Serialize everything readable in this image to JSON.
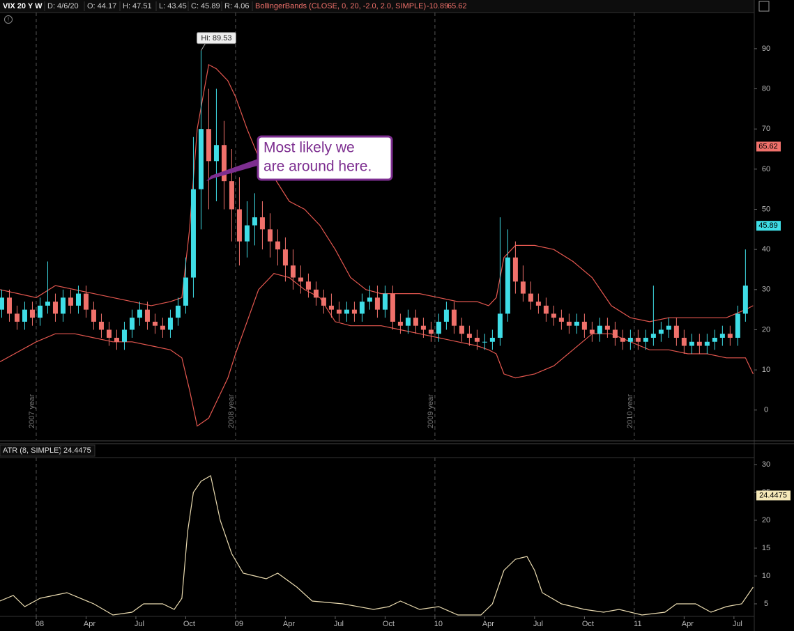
{
  "header": {
    "symbol": "VIX 20 Y W",
    "items": [
      "D: 4/6/20",
      "O: 44.17",
      "H: 47.51",
      "L: 43.45",
      "C: 45.89",
      "R: 4.06"
    ],
    "study": "BollingerBands (CLOSE, 0, 20, -2.0, 2.0, SIMPLE)",
    "study_values": [
      "-10.89",
      "65.62"
    ]
  },
  "annotation": {
    "lines": [
      "Most likely we",
      "are around here."
    ]
  },
  "chart_data": [
    {
      "type": "candlestick",
      "x": [
        -9,
        -7,
        -5,
        -3,
        -1,
        1,
        3,
        5,
        7,
        9,
        11,
        13,
        15,
        17,
        19,
        21,
        23,
        25,
        27,
        29,
        31,
        33,
        35,
        37,
        39,
        41,
        43,
        45,
        47,
        49,
        51,
        53,
        55,
        57,
        59,
        61,
        63,
        65,
        67,
        69,
        71,
        73,
        75,
        77,
        79,
        81,
        83,
        85,
        87,
        89,
        91,
        93,
        95,
        97,
        99,
        101,
        103,
        105,
        107,
        109,
        111,
        113,
        115,
        117,
        119,
        121,
        123,
        125,
        127,
        129,
        131,
        133,
        135,
        137,
        139,
        141,
        143,
        145,
        147,
        149,
        151,
        153,
        155,
        157,
        159,
        161,
        163,
        165,
        167,
        169,
        171,
        173,
        175,
        177,
        179,
        181,
        183,
        185
      ],
      "open": [
        25,
        28,
        24,
        22,
        25,
        23,
        26,
        27,
        24,
        28,
        26,
        29,
        25,
        22,
        20,
        18,
        17,
        20,
        23,
        25,
        22,
        21,
        20,
        23,
        26,
        33,
        55,
        70,
        62,
        66,
        57,
        50,
        42,
        46,
        48,
        45,
        42,
        40,
        36,
        33,
        32,
        30,
        28,
        26,
        25,
        24,
        25,
        24,
        27,
        28,
        25,
        29,
        22,
        21,
        23,
        21,
        20,
        19,
        22,
        25,
        21,
        19,
        18,
        17,
        17,
        18,
        24,
        38,
        32,
        29,
        27,
        26,
        24,
        23,
        22,
        21,
        22,
        20,
        19,
        21,
        20,
        18,
        17,
        18,
        17,
        18,
        19,
        20,
        21,
        18,
        16,
        17,
        16,
        17,
        18,
        19,
        18,
        24
      ],
      "high": [
        30,
        30,
        26,
        27,
        27,
        28,
        37,
        29,
        30,
        30,
        31,
        31,
        27,
        24,
        22,
        20,
        22,
        25,
        27,
        27,
        24,
        23,
        25,
        28,
        38,
        68,
        89.53,
        80,
        80,
        72,
        65,
        58,
        52,
        54,
        52,
        49,
        45,
        43,
        40,
        36,
        34,
        32,
        30,
        29,
        27,
        27,
        27,
        29,
        31,
        31,
        31,
        31,
        24,
        25,
        25,
        23,
        22,
        24,
        27,
        27,
        23,
        21,
        20,
        19,
        20,
        48,
        45,
        42,
        36,
        32,
        29,
        28,
        26,
        25,
        24,
        24,
        24,
        22,
        23,
        23,
        22,
        20,
        20,
        20,
        20,
        31,
        22,
        23,
        23,
        20,
        19,
        19,
        19,
        20,
        21,
        21,
        26,
        40
      ],
      "low": [
        23,
        22,
        20,
        20,
        21,
        21,
        24,
        22,
        22,
        24,
        24,
        23,
        20,
        18,
        16,
        15,
        15,
        18,
        21,
        20,
        19,
        18,
        18,
        21,
        24,
        28,
        45,
        50,
        52,
        50,
        42,
        36,
        38,
        41,
        40,
        38,
        36,
        32,
        30,
        29,
        28,
        26,
        24,
        23,
        22,
        22,
        22,
        22,
        25,
        23,
        23,
        20,
        19,
        19,
        19,
        18,
        17,
        17,
        20,
        19,
        17,
        16,
        15,
        15,
        15,
        16,
        22,
        29,
        27,
        25,
        24,
        22,
        21,
        20,
        19,
        19,
        18,
        17,
        17,
        18,
        16,
        15,
        15,
        15,
        15,
        16,
        17,
        18,
        16,
        14,
        14,
        14,
        14,
        15,
        16,
        16,
        16,
        22
      ],
      "close": [
        28,
        24,
        22,
        25,
        23,
        26,
        27,
        24,
        28,
        26,
        29,
        25,
        22,
        20,
        18,
        17,
        20,
        23,
        25,
        22,
        21,
        20,
        23,
        26,
        33,
        55,
        70,
        62,
        66,
        57,
        50,
        42,
        46,
        48,
        45,
        42,
        40,
        36,
        33,
        32,
        30,
        28,
        26,
        25,
        24,
        25,
        24,
        27,
        28,
        25,
        29,
        22,
        21,
        23,
        21,
        20,
        19,
        22,
        25,
        21,
        19,
        18,
        17,
        17,
        18,
        24,
        38,
        32,
        29,
        27,
        26,
        24,
        23,
        22,
        21,
        22,
        20,
        19,
        21,
        20,
        18,
        17,
        18,
        17,
        18,
        19,
        20,
        21,
        18,
        16,
        17,
        16,
        17,
        18,
        19,
        18,
        24,
        31
      ],
      "up_color": "#3fdde6",
      "down_color": "#f0716b",
      "high_label": "Hi: 89.53",
      "bands": {
        "color": "#e4574f",
        "x": [
          -9.5,
          0,
          5,
          10,
          15,
          20,
          25,
          30,
          35,
          38,
          40,
          42,
          45,
          47,
          50,
          52,
          55,
          58,
          62,
          66,
          70,
          74,
          78,
          82,
          86,
          90,
          95,
          100,
          105,
          110,
          115,
          118,
          120,
          122,
          125,
          130,
          135,
          140,
          145,
          150,
          155,
          160,
          165,
          170,
          175,
          180,
          185,
          187
        ],
        "upper": [
          30,
          28,
          31,
          30,
          29,
          28,
          27,
          26,
          27,
          28,
          45,
          70,
          86,
          85,
          82,
          78,
          70,
          63,
          58,
          52,
          50,
          46,
          40,
          33,
          30,
          29,
          29,
          29,
          28,
          27,
          27,
          26,
          28,
          38,
          41,
          41,
          40,
          37,
          33,
          26,
          23,
          22,
          23,
          23,
          23,
          23,
          25,
          26
        ],
        "lower": [
          12,
          17,
          19,
          19,
          18,
          17,
          17,
          16,
          15,
          13,
          5,
          -4,
          -2,
          2,
          8,
          14,
          22,
          30,
          34,
          33,
          30,
          28,
          22,
          21,
          21,
          21,
          20,
          19,
          18,
          17,
          16,
          15,
          14,
          9,
          8,
          9,
          11,
          15,
          19,
          19,
          17,
          15,
          15,
          14,
          14,
          13,
          13,
          9
        ]
      },
      "price_markers": [
        {
          "value": 65.62,
          "color": "#f0716b"
        },
        {
          "value": 45.89,
          "color": "#3fdde6"
        }
      ],
      "xlim": [
        -9.45,
        187.3
      ],
      "ylim": [
        -7.5,
        99
      ],
      "yticks": [
        0,
        10,
        20,
        30,
        40,
        50,
        60,
        70,
        80,
        90
      ],
      "xticks": [
        {
          "value": 0,
          "label": "2007 year"
        },
        {
          "value": 52,
          "label": "2008 year"
        },
        {
          "value": 104,
          "label": "2009 year"
        },
        {
          "value": 156,
          "label": "2010 year"
        }
      ]
    },
    {
      "type": "line",
      "title": "ATR (8, SIMPLE)",
      "last_value": 24.4475,
      "color": "#eadbb0",
      "x": [
        -9.5,
        -6,
        -3,
        1,
        8,
        15,
        20,
        25,
        28,
        33,
        36,
        38,
        39.5,
        41,
        43,
        45.5,
        48,
        51,
        54,
        57,
        60,
        63,
        68,
        72,
        80,
        88,
        92,
        95,
        100,
        105,
        110,
        116,
        119,
        122,
        125,
        128,
        130,
        132,
        137,
        143,
        148,
        152,
        158,
        164,
        167,
        172,
        176,
        180,
        184,
        187
      ],
      "values": [
        5.5,
        6.5,
        4.5,
        6,
        7,
        5,
        3,
        3.5,
        5,
        5,
        4,
        6,
        18,
        25,
        27,
        28,
        20,
        14,
        10.5,
        10,
        9.5,
        10.5,
        8,
        5.5,
        5,
        4,
        4.5,
        5.5,
        4,
        4.5,
        3,
        3,
        5,
        11,
        13,
        13.5,
        11,
        7,
        5,
        4,
        3.5,
        4,
        3,
        3.5,
        5,
        5,
        3.5,
        4.5,
        5,
        8
      ],
      "xlim": [
        -9.45,
        187.3
      ],
      "ylim": [
        2.75,
        31.25
      ],
      "yticks": [
        5,
        10,
        15,
        20,
        25,
        30
      ],
      "xticks": [
        {
          "value": 0,
          "label": "08"
        },
        {
          "value": 13,
          "label": "Apr"
        },
        {
          "value": 26,
          "label": "Jul"
        },
        {
          "value": 39,
          "label": "Oct"
        },
        {
          "value": 52,
          "label": "09"
        },
        {
          "value": 65,
          "label": "Apr"
        },
        {
          "value": 78,
          "label": "Jul"
        },
        {
          "value": 91,
          "label": "Oct"
        },
        {
          "value": 104,
          "label": "10"
        },
        {
          "value": 117,
          "label": "Apr"
        },
        {
          "value": 130,
          "label": "Jul"
        },
        {
          "value": 143,
          "label": "Oct"
        },
        {
          "value": 156,
          "label": "11"
        },
        {
          "value": 169,
          "label": "Apr"
        },
        {
          "value": 182,
          "label": "Jul"
        }
      ]
    }
  ]
}
